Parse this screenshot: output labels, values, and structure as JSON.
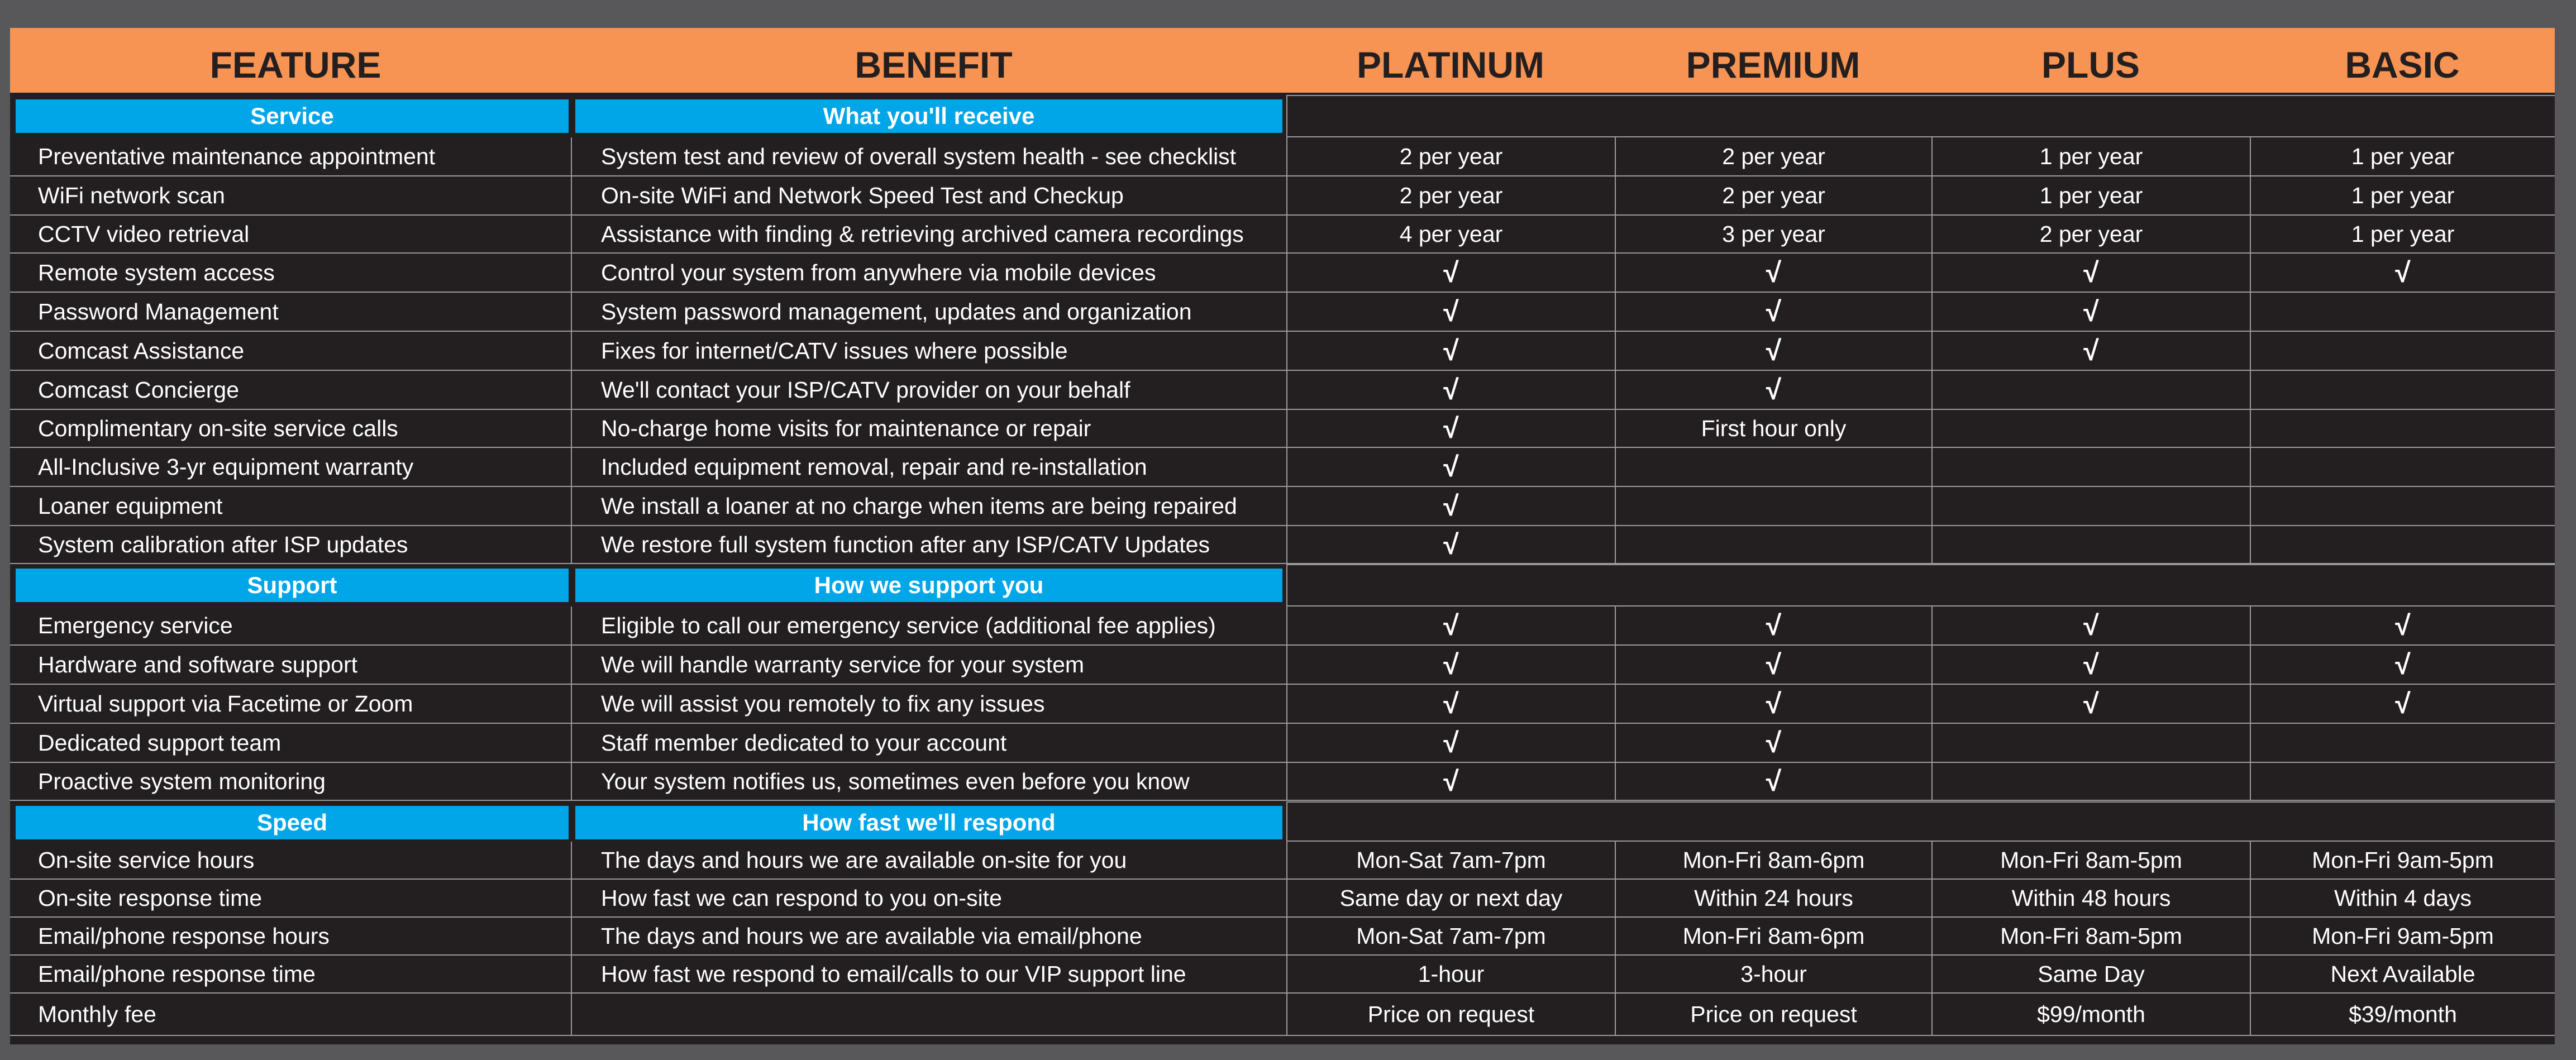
{
  "header": {
    "feature": "FEATURE",
    "benefit": "BENEFIT",
    "platinum": "PLATINUM",
    "premium": "PREMIUM",
    "plus": "PLUS",
    "basic": "BASIC"
  },
  "check_mark": "√",
  "sections": [
    {
      "title": "Service",
      "subtitle": "What you'll receive",
      "rows": [
        {
          "feature": "Preventative maintenance appointment",
          "benefit": "System test and review of overall system health - see checklist",
          "platinum": "2 per year",
          "premium": "2 per year",
          "plus": "1 per year",
          "basic": "1 per year"
        },
        {
          "feature": "WiFi network scan",
          "benefit": "On-site WiFi and Network Speed Test and Checkup",
          "platinum": "2 per year",
          "premium": "2 per year",
          "plus": "1 per year",
          "basic": "1 per year"
        },
        {
          "feature": "CCTV video retrieval",
          "benefit": "Assistance with finding & retrieving archived camera recordings",
          "platinum": "4 per year",
          "premium": "3 per year",
          "plus": "2 per year",
          "basic": "1 per year"
        },
        {
          "feature": "Remote system access",
          "benefit": "Control your system from anywhere via mobile devices",
          "platinum": "√",
          "premium": "√",
          "plus": "√",
          "basic": "√"
        },
        {
          "feature": "Password Management",
          "benefit": "System password management, updates and organization",
          "platinum": "√",
          "premium": "√",
          "plus": "√",
          "basic": ""
        },
        {
          "feature": "Comcast Assistance",
          "benefit": "Fixes for internet/CATV issues where possible",
          "platinum": "√",
          "premium": "√",
          "plus": "√",
          "basic": ""
        },
        {
          "feature": "Comcast Concierge",
          "benefit": "We'll contact your ISP/CATV provider on your behalf",
          "platinum": "√",
          "premium": "√",
          "plus": "",
          "basic": ""
        },
        {
          "feature": "Complimentary on-site service calls",
          "benefit": "No-charge home visits for maintenance or repair",
          "platinum": "√",
          "premium": "First hour only",
          "plus": "",
          "basic": ""
        },
        {
          "feature": "All-Inclusive 3-yr equipment warranty",
          "benefit": "Included equipment removal, repair and re-installation",
          "platinum": "√",
          "premium": "",
          "plus": "",
          "basic": ""
        },
        {
          "feature": "Loaner equipment",
          "benefit": "We install a loaner at no charge when items are being repaired",
          "platinum": "√",
          "premium": "",
          "plus": "",
          "basic": ""
        },
        {
          "feature": "System calibration after ISP updates",
          "benefit": "We restore full system function after any ISP/CATV Updates",
          "platinum": "√",
          "premium": "",
          "plus": "",
          "basic": ""
        }
      ]
    },
    {
      "title": "Support",
      "subtitle": "How we support you",
      "rows": [
        {
          "feature": "Emergency service",
          "benefit": "Eligible to call our emergency service (additional fee applies)",
          "platinum": "√",
          "premium": "√",
          "plus": "√",
          "basic": "√"
        },
        {
          "feature": "Hardware and software support",
          "benefit": "We will handle warranty service for your system",
          "platinum": "√",
          "premium": "√",
          "plus": "√",
          "basic": "√"
        },
        {
          "feature": "Virtual support via Facetime or Zoom",
          "benefit": "We will assist you remotely to fix any issues",
          "platinum": "√",
          "premium": "√",
          "plus": "√",
          "basic": "√"
        },
        {
          "feature": "Dedicated support team",
          "benefit": "Staff member dedicated to your account",
          "platinum": "√",
          "premium": "√",
          "plus": "",
          "basic": ""
        },
        {
          "feature": "Proactive system monitoring",
          "benefit": "Your system notifies us, sometimes even before you know",
          "platinum": "√",
          "premium": "√",
          "plus": "",
          "basic": ""
        }
      ]
    },
    {
      "title": "Speed",
      "subtitle": "How fast we'll respond",
      "rows": [
        {
          "feature": "On-site service hours",
          "benefit": "The days and hours we are available on-site for you",
          "platinum": "Mon-Sat 7am-7pm",
          "premium": "Mon-Fri 8am-6pm",
          "plus": "Mon-Fri 8am-5pm",
          "basic": "Mon-Fri 9am-5pm"
        },
        {
          "feature": "On-site response time",
          "benefit": "How fast we can respond to you on-site",
          "platinum": "Same day or next day",
          "premium": "Within 24 hours",
          "plus": "Within 48 hours",
          "basic": "Within 4 days"
        },
        {
          "feature": "Email/phone response hours",
          "benefit": "The days and hours we are available via email/phone",
          "platinum": "Mon-Sat 7am-7pm",
          "premium": "Mon-Fri 8am-6pm",
          "plus": "Mon-Fri 8am-5pm",
          "basic": "Mon-Fri 9am-5pm"
        },
        {
          "feature": "Email/phone response time",
          "benefit": "How fast we respond to email/calls to our VIP support line",
          "platinum": "1-hour",
          "premium": "3-hour",
          "plus": "Same Day",
          "basic": "Next Available"
        },
        {
          "feature": "Monthly fee",
          "benefit": "",
          "platinum": "Price on request",
          "premium": "Price on request",
          "plus": "$99/month",
          "basic": "$39/month"
        }
      ]
    }
  ]
}
